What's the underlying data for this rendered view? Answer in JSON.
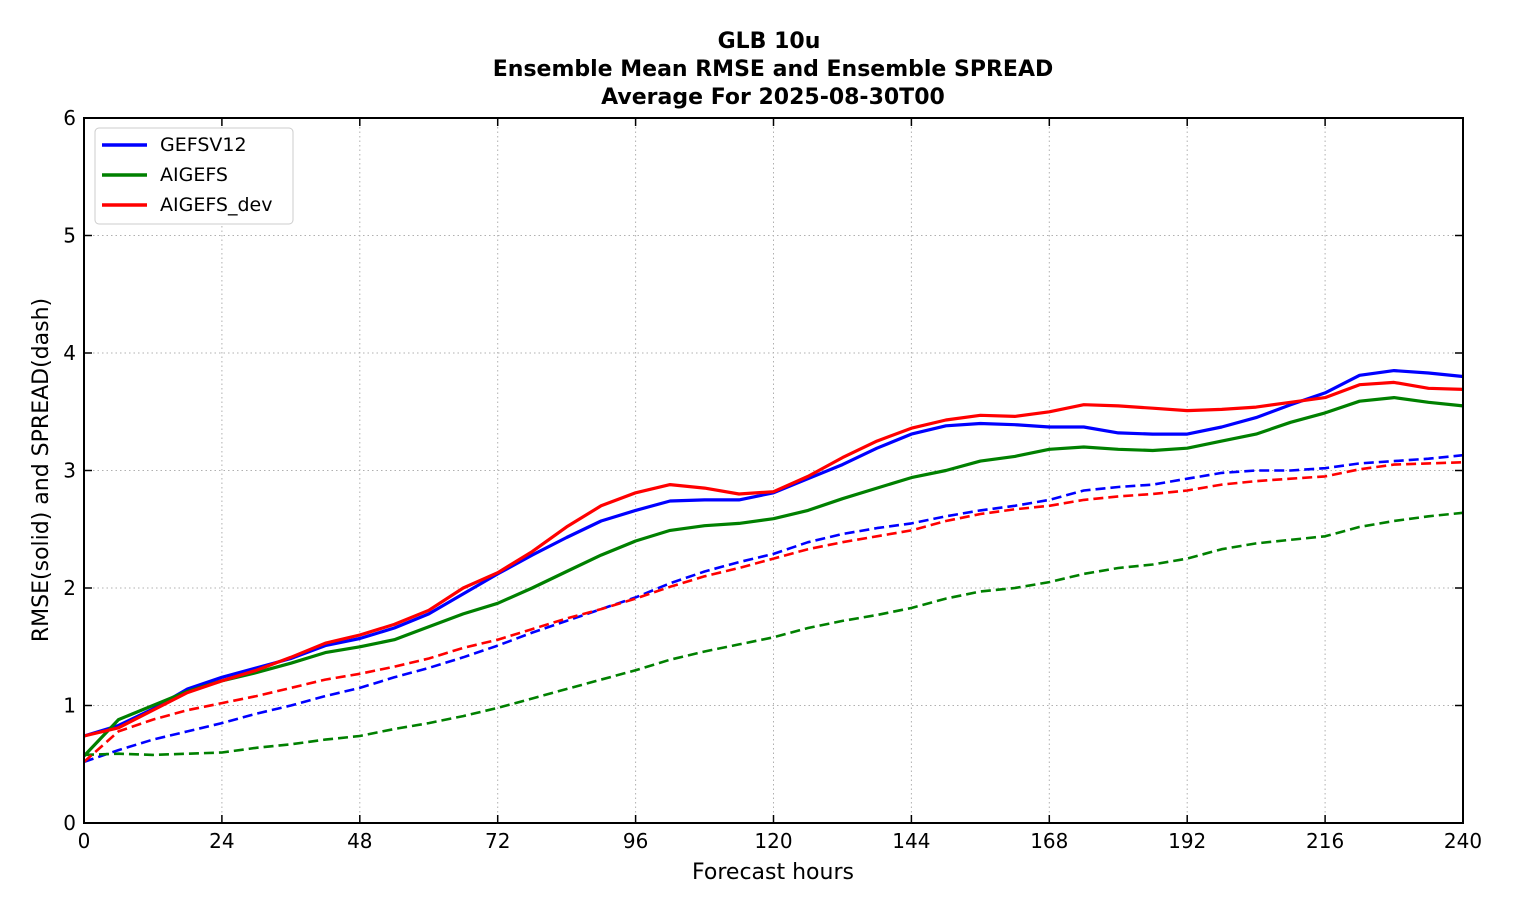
{
  "chart_data": {
    "type": "line",
    "title": [
      "GLB 10u",
      "Ensemble Mean RMSE and Ensemble SPREAD",
      "Average For 2025-08-30T00"
    ],
    "xlabel": "Forecast hours",
    "ylabel": "RMSE(solid) and SPREAD(dash)",
    "xlim": [
      0,
      240
    ],
    "ylim": [
      0,
      6
    ],
    "xticks": [
      0,
      24,
      48,
      72,
      96,
      120,
      144,
      168,
      192,
      216,
      240
    ],
    "yticks": [
      0,
      1,
      2,
      3,
      4,
      5,
      6
    ],
    "grid": true,
    "legend_position": "top-left",
    "x": [
      0,
      6,
      12,
      18,
      24,
      30,
      36,
      42,
      48,
      54,
      60,
      66,
      72,
      78,
      84,
      90,
      96,
      102,
      108,
      114,
      120,
      126,
      132,
      138,
      144,
      150,
      156,
      162,
      168,
      174,
      180,
      186,
      192,
      198,
      204,
      210,
      216,
      222,
      228,
      234,
      240
    ],
    "series": [
      {
        "name": "GEFSV12",
        "color": "#0000ff",
        "rmse": [
          0.74,
          0.83,
          0.97,
          1.14,
          1.24,
          1.32,
          1.4,
          1.51,
          1.57,
          1.66,
          1.78,
          1.95,
          2.12,
          2.28,
          2.43,
          2.57,
          2.66,
          2.74,
          2.75,
          2.75,
          2.81,
          2.93,
          3.05,
          3.19,
          3.31,
          3.38,
          3.4,
          3.39,
          3.37,
          3.37,
          3.32,
          3.31,
          3.31,
          3.37,
          3.45,
          3.56,
          3.66,
          3.81,
          3.85,
          3.83,
          3.8
        ],
        "spread": [
          0.52,
          0.62,
          0.71,
          0.78,
          0.85,
          0.93,
          1.0,
          1.08,
          1.15,
          1.24,
          1.32,
          1.41,
          1.51,
          1.62,
          1.72,
          1.82,
          1.92,
          2.04,
          2.14,
          2.22,
          2.29,
          2.39,
          2.46,
          2.51,
          2.55,
          2.61,
          2.66,
          2.7,
          2.75,
          2.83,
          2.86,
          2.88,
          2.93,
          2.98,
          3.0,
          3.0,
          3.02,
          3.06,
          3.08,
          3.1,
          3.13
        ]
      },
      {
        "name": "AIGEFS",
        "color": "#008000",
        "rmse": [
          0.57,
          0.88,
          1.0,
          1.12,
          1.21,
          1.28,
          1.36,
          1.45,
          1.5,
          1.56,
          1.67,
          1.78,
          1.87,
          2.0,
          2.14,
          2.28,
          2.4,
          2.49,
          2.53,
          2.55,
          2.59,
          2.66,
          2.76,
          2.85,
          2.94,
          3.0,
          3.08,
          3.12,
          3.18,
          3.2,
          3.18,
          3.17,
          3.19,
          3.25,
          3.31,
          3.41,
          3.49,
          3.59,
          3.62,
          3.58,
          3.55
        ],
        "spread": [
          0.58,
          0.59,
          0.58,
          0.59,
          0.6,
          0.64,
          0.67,
          0.71,
          0.74,
          0.8,
          0.85,
          0.91,
          0.98,
          1.06,
          1.14,
          1.22,
          1.3,
          1.39,
          1.46,
          1.52,
          1.58,
          1.66,
          1.72,
          1.77,
          1.83,
          1.91,
          1.97,
          2.0,
          2.05,
          2.12,
          2.17,
          2.2,
          2.25,
          2.33,
          2.38,
          2.41,
          2.44,
          2.52,
          2.57,
          2.61,
          2.64
        ]
      },
      {
        "name": "AIGEFS_dev",
        "color": "#ff0000",
        "rmse": [
          0.74,
          0.81,
          0.96,
          1.11,
          1.21,
          1.3,
          1.41,
          1.53,
          1.6,
          1.69,
          1.81,
          2.0,
          2.13,
          2.31,
          2.52,
          2.7,
          2.81,
          2.88,
          2.85,
          2.8,
          2.82,
          2.95,
          3.11,
          3.25,
          3.36,
          3.43,
          3.47,
          3.46,
          3.5,
          3.56,
          3.55,
          3.53,
          3.51,
          3.52,
          3.54,
          3.58,
          3.62,
          3.73,
          3.75,
          3.7,
          3.69
        ],
        "spread": [
          0.52,
          0.78,
          0.88,
          0.96,
          1.02,
          1.08,
          1.15,
          1.22,
          1.27,
          1.33,
          1.4,
          1.49,
          1.56,
          1.65,
          1.74,
          1.82,
          1.91,
          2.01,
          2.1,
          2.17,
          2.25,
          2.33,
          2.39,
          2.44,
          2.49,
          2.57,
          2.63,
          2.67,
          2.7,
          2.75,
          2.78,
          2.8,
          2.83,
          2.88,
          2.91,
          2.93,
          2.95,
          3.01,
          3.05,
          3.06,
          3.07
        ]
      }
    ]
  }
}
